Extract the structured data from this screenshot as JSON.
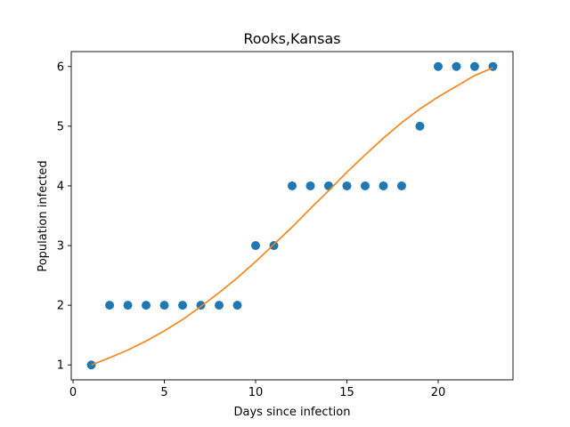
{
  "chart_data": {
    "type": "scatter",
    "title": "Rooks,Kansas",
    "xlabel": "Days since infection",
    "ylabel": "Population infected",
    "xlim": [
      -0.1,
      24.1
    ],
    "ylim": [
      0.75,
      6.25
    ],
    "xticks": [
      0,
      5,
      10,
      15,
      20
    ],
    "yticks": [
      1,
      2,
      3,
      4,
      5,
      6
    ],
    "grid": false,
    "colors": {
      "points": "#1f77b4",
      "fit": "#ff7f0e"
    },
    "points": {
      "x": [
        1,
        2,
        3,
        4,
        5,
        6,
        7,
        8,
        9,
        10,
        11,
        12,
        13,
        14,
        15,
        16,
        17,
        18,
        19,
        20,
        21,
        22,
        23
      ],
      "y": [
        1,
        2,
        2,
        2,
        2,
        2,
        2,
        2,
        2,
        3,
        3,
        4,
        4,
        4,
        4,
        4,
        4,
        4,
        5,
        6,
        6,
        6,
        6
      ]
    },
    "fit_curve": {
      "x": [
        1,
        2,
        3,
        4,
        5,
        6,
        7,
        8,
        9,
        10,
        11,
        12,
        13,
        14,
        15,
        16,
        17,
        18,
        19,
        20,
        21,
        22,
        23
      ],
      "y": [
        1.0,
        1.12,
        1.25,
        1.4,
        1.57,
        1.76,
        1.98,
        2.21,
        2.46,
        2.73,
        3.02,
        3.31,
        3.62,
        3.92,
        4.23,
        4.52,
        4.8,
        5.06,
        5.29,
        5.49,
        5.67,
        5.85,
        5.98
      ]
    }
  }
}
